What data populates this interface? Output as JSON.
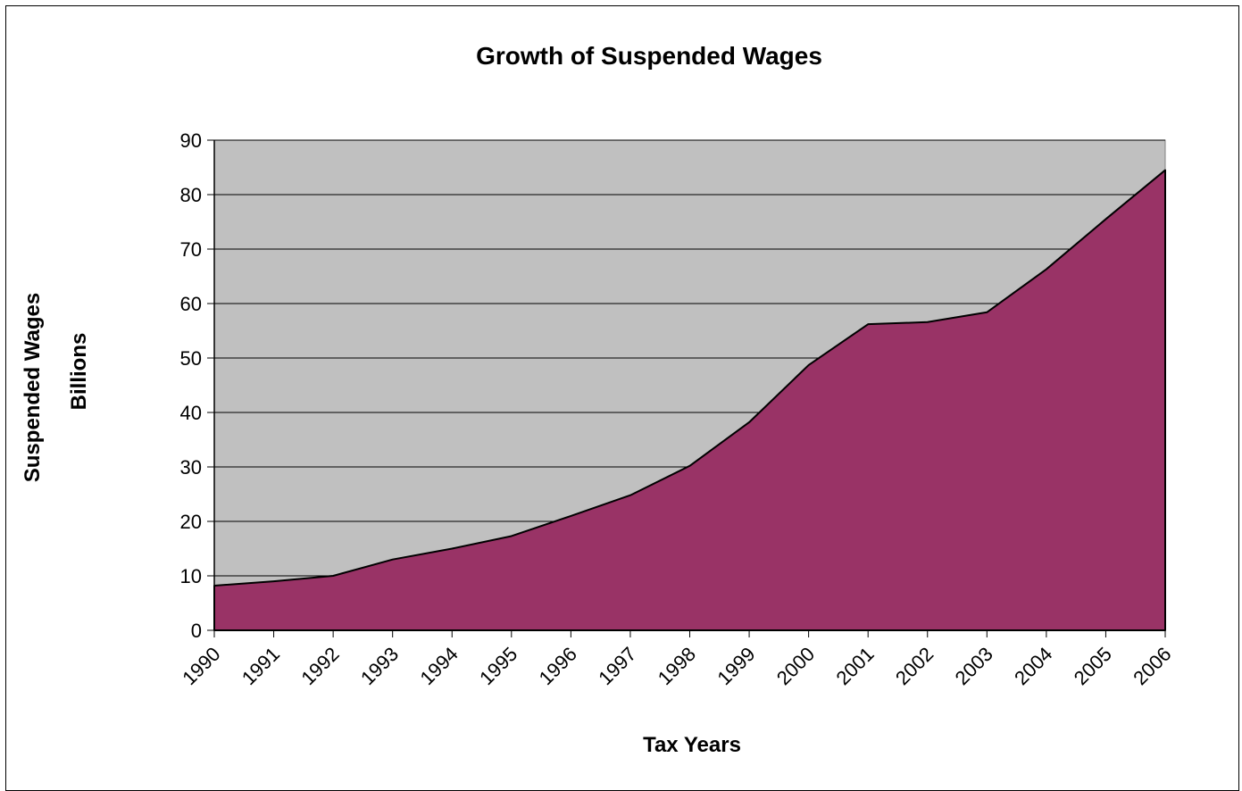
{
  "chart_data": {
    "type": "area",
    "title": "Growth of Suspended Wages",
    "xlabel": "Tax Years",
    "ylabel": "Suspended Wages",
    "ylabel_sub": "Billions",
    "categories": [
      "1990",
      "1991",
      "1992",
      "1993",
      "1994",
      "1995",
      "1996",
      "1997",
      "1998",
      "1999",
      "2000",
      "2001",
      "2002",
      "2003",
      "2004",
      "2005",
      "2006"
    ],
    "series": [
      {
        "values": [
          8.2,
          9.0,
          10.0,
          13.0,
          15.0,
          17.3,
          21.0,
          24.8,
          30.2,
          38.2,
          48.7,
          56.2,
          56.6,
          58.4,
          66.3,
          75.5,
          84.5
        ]
      }
    ],
    "yticks": [
      "0",
      "10",
      "20",
      "30",
      "40",
      "50",
      "60",
      "70",
      "80",
      "90"
    ],
    "ylim": [
      0,
      90
    ],
    "grid": true,
    "legend": "none",
    "colors": {
      "fill": "#993366",
      "plot_background": "#c0c0c0",
      "line": "#000000"
    }
  }
}
